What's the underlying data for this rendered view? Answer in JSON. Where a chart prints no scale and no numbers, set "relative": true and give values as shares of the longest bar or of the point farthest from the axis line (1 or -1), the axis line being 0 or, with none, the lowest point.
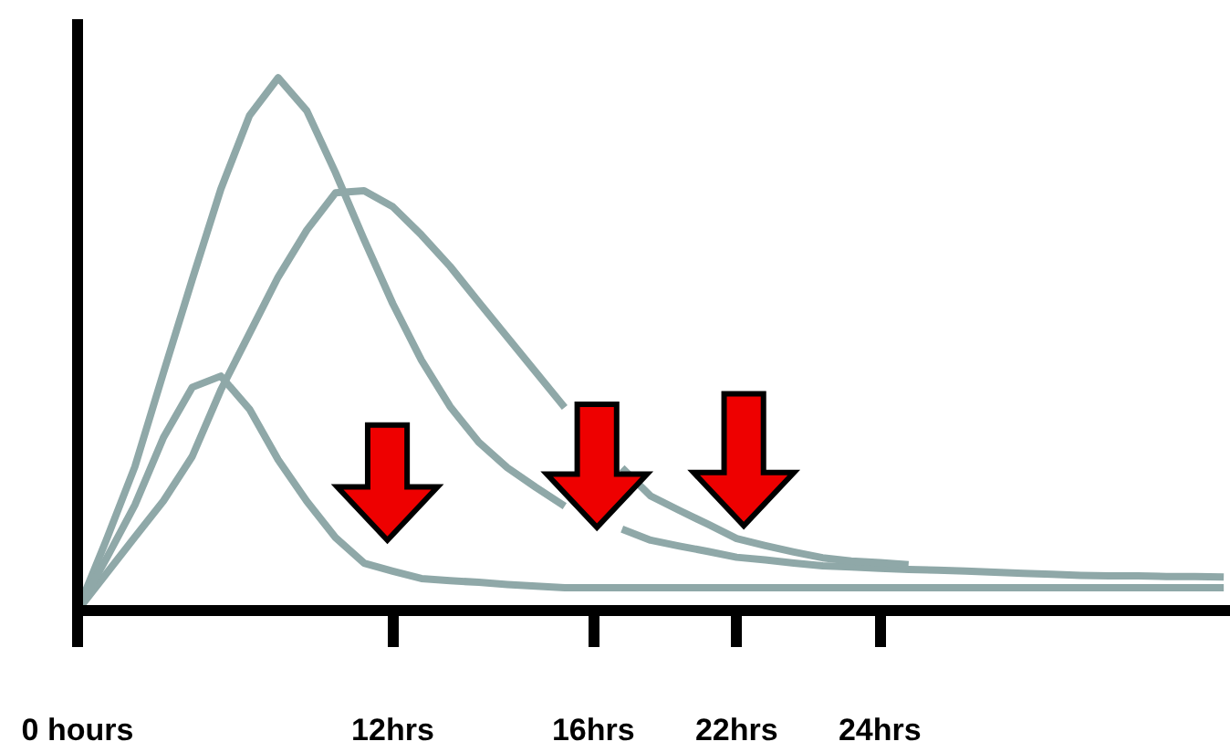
{
  "chart_data": {
    "type": "line",
    "relative": true,
    "categories": [
      "0 hours",
      null,
      null,
      null,
      null,
      null,
      null,
      null,
      null,
      null,
      null,
      "12hrs",
      null,
      null,
      null,
      null,
      null,
      null,
      "16hrs",
      null,
      null,
      null,
      null,
      "22hrs",
      null,
      null,
      null,
      null,
      "24hrs",
      null,
      null,
      null,
      null,
      null,
      null,
      null,
      null,
      null,
      null,
      null,
      null
    ],
    "grid": false,
    "marker": "none",
    "line_style": "solid",
    "series": [
      {
        "color": "#8fa8a8",
        "values": [
          0,
          0.132,
          0.27,
          0.447,
          0.621,
          0.791,
          0.929,
          1,
          0.938,
          0.822,
          0.696,
          0.576,
          0.47,
          0.383,
          0.316,
          0.268,
          0.231,
          0.196,
          null,
          0.153,
          0.132,
          0.121,
          0.111,
          0.1,
          0.095,
          0.089,
          0.084,
          0.082,
          0.079,
          0.077,
          0.076,
          0.074,
          0.072,
          0.07,
          0.068,
          0.066,
          0.065,
          0.065,
          0.064,
          0.064,
          0.063
        ]
      },
      {
        "color": "#8fa8a8",
        "values": [
          0,
          0.069,
          0.138,
          0.206,
          0.289,
          0.414,
          0.52,
          0.626,
          0.714,
          0.784,
          0.788,
          0.758,
          0.705,
          0.646,
          0.579,
          0.513,
          0.447,
          0.381,
          null,
          0.268,
          0.215,
          0.188,
          0.162,
          0.135,
          0.122,
          0.11,
          0.099,
          0.093,
          0.09,
          0.086,
          null,
          null,
          null,
          null,
          null,
          null,
          null,
          null,
          null,
          null,
          null
        ]
      },
      {
        "color": "#8fa8a8",
        "values": [
          0,
          0.097,
          0.198,
          0.325,
          0.419,
          0.44,
          0.378,
          0.283,
          0.205,
          0.137,
          0.089,
          0.074,
          0.06,
          0.056,
          0.053,
          0.049,
          0.046,
          0.043,
          0.043,
          0.043,
          0.043,
          0.043,
          0.043,
          0.043,
          0.043,
          0.043,
          0.043,
          0.043,
          0.043,
          0.043,
          0.043,
          0.043,
          0.043,
          0.043,
          0.043,
          0.043,
          0.043,
          0.043,
          0.043,
          0.043,
          0.043
        ]
      }
    ]
  }
}
